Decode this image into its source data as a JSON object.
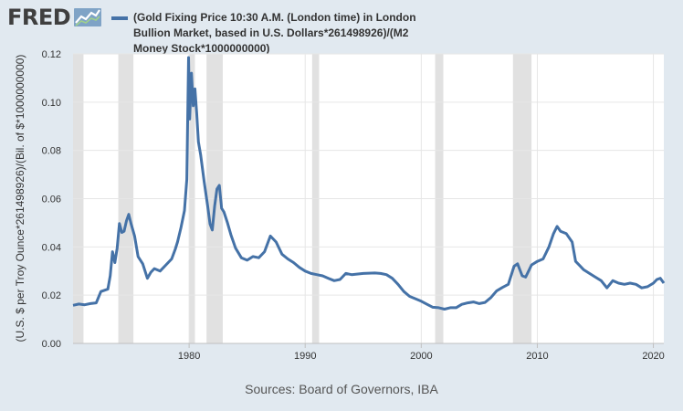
{
  "logo": {
    "text": "FRED",
    "icon": "fred-line-chart-icon"
  },
  "legend": {
    "color": "#4572a7",
    "label": "(Gold Fixing Price 10:30 A.M. (London time) in London Bullion Market, based in U.S. Dollars*261498926)/(M2 Money Stock*1000000000)"
  },
  "sources": "Sources: Board of Governors, IBA",
  "chart_data": {
    "type": "line",
    "title": "",
    "xlabel": "",
    "ylabel": "(U.S. $ per Troy Ounce*261498926)/(Bil. of $*1000000000)",
    "xlim": [
      1970.0,
      2020.9
    ],
    "ylim": [
      0,
      0.12
    ],
    "x_ticks": [
      1980,
      1990,
      2000,
      2010,
      2020
    ],
    "y_ticks": [
      "0.00",
      "0.02",
      "0.04",
      "0.06",
      "0.08",
      "0.10",
      "0.12"
    ],
    "grid": true,
    "legend_position": "top",
    "line_color": "#4572a7",
    "recession_color": "#e1e1e1",
    "recessions": [
      [
        1969.9,
        1970.9
      ],
      [
        1973.9,
        1975.2
      ],
      [
        1980.0,
        1980.5
      ],
      [
        1981.5,
        1982.9
      ],
      [
        1990.6,
        1991.2
      ],
      [
        2001.2,
        2001.9
      ],
      [
        2007.9,
        2009.5
      ]
    ],
    "series": [
      {
        "name": "",
        "x": [
          1970.0,
          1970.5,
          1971.0,
          1971.5,
          1972.0,
          1972.4,
          1972.8,
          1973.0,
          1973.2,
          1973.4,
          1973.6,
          1973.8,
          1974.0,
          1974.2,
          1974.4,
          1974.6,
          1974.8,
          1975.0,
          1975.3,
          1975.6,
          1976.0,
          1976.4,
          1976.7,
          1977.0,
          1977.5,
          1978.0,
          1978.5,
          1978.8,
          1979.0,
          1979.3,
          1979.6,
          1979.8,
          1979.95,
          1980.05,
          1980.2,
          1980.35,
          1980.5,
          1980.65,
          1980.8,
          1981.0,
          1981.3,
          1981.6,
          1981.8,
          1982.0,
          1982.2,
          1982.4,
          1982.6,
          1982.8,
          1983.0,
          1983.3,
          1983.6,
          1984.0,
          1984.5,
          1985.0,
          1985.5,
          1986.0,
          1986.5,
          1987.0,
          1987.5,
          1988.0,
          1988.5,
          1989.0,
          1989.5,
          1990.0,
          1990.5,
          1991.0,
          1991.5,
          1992.0,
          1992.5,
          1993.0,
          1993.5,
          1994.0,
          1995.0,
          1996.0,
          1996.5,
          1997.0,
          1997.5,
          1998.0,
          1998.5,
          1999.0,
          1999.5,
          2000.0,
          2000.5,
          2001.0,
          2001.5,
          2002.0,
          2002.5,
          2003.0,
          2003.5,
          2004.0,
          2004.5,
          2005.0,
          2005.5,
          2006.0,
          2006.5,
          2007.0,
          2007.5,
          2008.0,
          2008.3,
          2008.7,
          2009.0,
          2009.5,
          2010.0,
          2010.5,
          2011.0,
          2011.4,
          2011.7,
          2012.0,
          2012.5,
          2013.0,
          2013.3,
          2013.6,
          2014.0,
          2014.5,
          2015.0,
          2015.5,
          2016.0,
          2016.5,
          2017.0,
          2017.5,
          2018.0,
          2018.5,
          2019.0,
          2019.5,
          2020.0,
          2020.3,
          2020.6,
          2020.9
        ],
        "values": [
          0.0158,
          0.0163,
          0.016,
          0.0165,
          0.0168,
          0.0215,
          0.0222,
          0.0225,
          0.028,
          0.038,
          0.0335,
          0.0395,
          0.0497,
          0.046,
          0.0465,
          0.0508,
          0.0535,
          0.0495,
          0.0445,
          0.036,
          0.033,
          0.027,
          0.0295,
          0.031,
          0.03,
          0.0325,
          0.035,
          0.039,
          0.042,
          0.048,
          0.055,
          0.068,
          0.1185,
          0.093,
          0.112,
          0.0985,
          0.1055,
          0.0955,
          0.0835,
          0.078,
          0.067,
          0.057,
          0.0495,
          0.047,
          0.057,
          0.064,
          0.0655,
          0.056,
          0.0545,
          0.05,
          0.045,
          0.0395,
          0.0355,
          0.0345,
          0.036,
          0.0355,
          0.038,
          0.0445,
          0.042,
          0.037,
          0.035,
          0.0335,
          0.0315,
          0.03,
          0.029,
          0.0285,
          0.028,
          0.027,
          0.026,
          0.0265,
          0.029,
          0.0285,
          0.029,
          0.0292,
          0.029,
          0.0285,
          0.027,
          0.0245,
          0.0215,
          0.0195,
          0.0185,
          0.0175,
          0.0162,
          0.015,
          0.0148,
          0.0142,
          0.0148,
          0.0148,
          0.0162,
          0.0168,
          0.0172,
          0.0165,
          0.017,
          0.019,
          0.0218,
          0.0232,
          0.0245,
          0.032,
          0.033,
          0.028,
          0.0275,
          0.0325,
          0.034,
          0.035,
          0.04,
          0.0455,
          0.0485,
          0.0465,
          0.0455,
          0.042,
          0.034,
          0.0325,
          0.0305,
          0.029,
          0.0275,
          0.026,
          0.023,
          0.026,
          0.025,
          0.0245,
          0.025,
          0.0245,
          0.023,
          0.0235,
          0.025,
          0.0265,
          0.027,
          0.025
        ]
      }
    ]
  }
}
